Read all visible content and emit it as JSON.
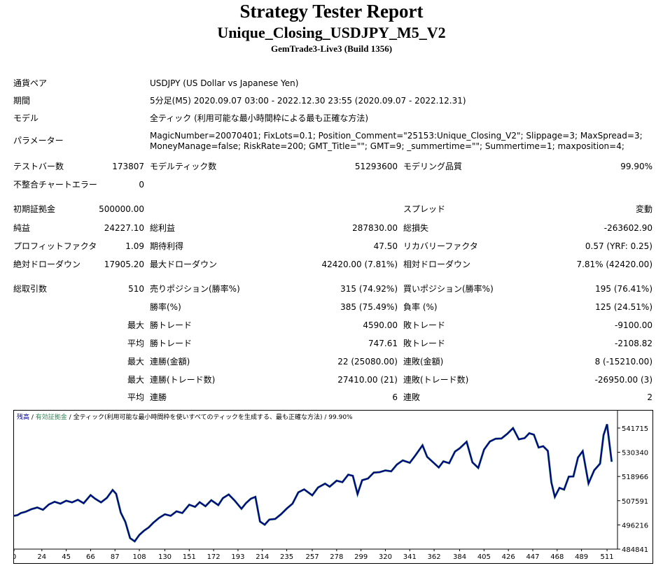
{
  "header": {
    "title": "Strategy Tester Report",
    "subtitle": "Unique_Closing_USDJPY_M5_V2",
    "build": "GemTrade3-Live3 (Build 1356)"
  },
  "info": {
    "pair_label": "通貨ペア",
    "pair_value": "USDJPY (US Dollar vs Japanese Yen)",
    "period_label": "期間",
    "period_value": "5分足(M5) 2020.09.07 03:00 - 2022.12.30 23:55 (2020.09.07 - 2022.12.31)",
    "model_label": "モデル",
    "model_value": "全ティック (利用可能な最小時間枠による最も正確な方法)",
    "params_label": "パラメーター",
    "params_line1": "MagicNumber=20070401; FixLots=0.1; Position_Comment=\"25153:Unique_Closing_V2\"; Slippage=3; MaxSpread=3;",
    "params_line2": "MoneyManage=false; RiskRate=200; GMT_Title=\"\"; GMT=9; _summertime=\"\"; Summertime=1; maxposition=4;"
  },
  "stats": {
    "bars_label": "テストバー数",
    "bars_value": "173807",
    "ticks_label": "モデルティック数",
    "ticks_value": "51293600",
    "quality_label": "モデリング品質",
    "quality_value": "99.90%",
    "mismatch_label": "不整合チャートエラー",
    "mismatch_value": "0",
    "deposit_label": "初期証拠金",
    "deposit_value": "500000.00",
    "spread_label": "スプレッド",
    "spread_value": "変動",
    "net_label": "純益",
    "net_value": "24227.10",
    "gross_profit_label": "総利益",
    "gross_profit_value": "287830.00",
    "gross_loss_label": "総損失",
    "gross_loss_value": "-263602.90",
    "pf_label": "プロフィットファクタ",
    "pf_value": "1.09",
    "expected_label": "期待利得",
    "expected_value": "47.50",
    "recovery_label": "リカバリーファクタ",
    "recovery_value": "0.57 (YRF: 0.25)",
    "abs_dd_label": "絶対ドローダウン",
    "abs_dd_value": "17905.20",
    "max_dd_label": "最大ドローダウン",
    "max_dd_value": "42420.00 (7.81%)",
    "rel_dd_label": "相対ドローダウン",
    "rel_dd_value": "7.81% (42420.00)",
    "total_trades_label": "総取引数",
    "total_trades_value": "510",
    "short_label": "売りポジション(勝率%)",
    "short_value": "315 (74.92%)",
    "long_label": "買いポジション(勝率%)",
    "long_value": "195 (76.41%)",
    "win_rate_label": "勝率(%)",
    "win_rate_value": "385 (75.49%)",
    "loss_rate_label": "負率 (%)",
    "loss_rate_value": "125 (24.51%)",
    "max_label": "最大",
    "avg_label": "平均",
    "largest_win_label": "勝トレード",
    "largest_win_value": "4590.00",
    "largest_loss_label": "敗トレード",
    "largest_loss_value": "-9100.00",
    "avg_win_label": "勝トレード",
    "avg_win_value": "747.61",
    "avg_loss_label": "敗トレード",
    "avg_loss_value": "-2108.82",
    "max_consec_win_label": "連勝(金額)",
    "max_consec_win_value": "22 (25080.00)",
    "max_consec_loss_label": "連敗(金額)",
    "max_consec_loss_value": "8 (-15210.00)",
    "max_consec_profit_label": "連勝(トレード数)",
    "max_consec_profit_value": "27410.00 (21)",
    "max_consec_lossamt_label": "連敗(トレード数)",
    "max_consec_lossamt_value": "-26950.00 (3)",
    "avg_consec_win_label": "連勝",
    "avg_consec_win_value": "6",
    "avg_consec_loss_label": "連敗",
    "avg_consec_loss_value": "2"
  },
  "chart_data": {
    "type": "line",
    "legend": {
      "balance": "残高",
      "sep1": " / ",
      "equity": "有効証拠金",
      "sep2": " / ",
      "model": "全ティック(利用可能な最小時間枠を使いすべてのティックを生成する、最も正確な方法)",
      "sep3": " / ",
      "quality": "99.90%"
    },
    "colors": {
      "balance": "#00008b",
      "equity": "#2e8b57",
      "background": "#ffffff",
      "grid": "#cccccc"
    },
    "x_ticks": [
      "0",
      "24",
      "45",
      "66",
      "87",
      "108",
      "130",
      "151",
      "172",
      "193",
      "214",
      "235",
      "257",
      "278",
      "299",
      "320",
      "341",
      "362",
      "384",
      "405",
      "426",
      "447",
      "468",
      "489",
      "511"
    ],
    "y_ticks": [
      "541715",
      "530340",
      "518966",
      "507591",
      "496216",
      "484841"
    ],
    "ylim": [
      484841,
      544000
    ],
    "xlim": [
      0,
      520
    ],
    "series": [
      {
        "name": "残高",
        "x": [
          0,
          3,
          6,
          10,
          15,
          20,
          25,
          30,
          35,
          40,
          45,
          50,
          55,
          60,
          66,
          70,
          75,
          80,
          85,
          88,
          92,
          96,
          100,
          104,
          108,
          112,
          116,
          120,
          125,
          130,
          135,
          140,
          145,
          151,
          156,
          160,
          165,
          170,
          176,
          180,
          185,
          190,
          196,
          200,
          204,
          208,
          212,
          216,
          220,
          225,
          230,
          235,
          240,
          245,
          250,
          257,
          262,
          268,
          272,
          278,
          283,
          288,
          292,
          296,
          300,
          305,
          310,
          315,
          320,
          325,
          330,
          335,
          341,
          346,
          352,
          356,
          362,
          366,
          370,
          375,
          380,
          384,
          390,
          395,
          400,
          405,
          410,
          415,
          420,
          425,
          430,
          435,
          440,
          444,
          448,
          452,
          456,
          460,
          463,
          466,
          470,
          474,
          478,
          482,
          486,
          490,
          495,
          500,
          505,
          508,
          511,
          515
        ],
        "y": [
          500500,
          500800,
          501800,
          502400,
          503600,
          504400,
          503300,
          505800,
          507100,
          506200,
          507600,
          506800,
          508000,
          506400,
          510200,
          508500,
          506800,
          508900,
          512600,
          510800,
          502000,
          497600,
          490000,
          488500,
          491500,
          493500,
          495000,
          497200,
          499500,
          501200,
          500500,
          502600,
          501800,
          505700,
          504700,
          506900,
          505000,
          507800,
          505500,
          508800,
          510500,
          507700,
          503800,
          506500,
          508500,
          509400,
          497800,
          496300,
          498700,
          499000,
          501200,
          503900,
          506200,
          511500,
          512900,
          510100,
          513800,
          515600,
          514200,
          517000,
          516300,
          519800,
          519300,
          510700,
          517200,
          518000,
          520800,
          521000,
          521800,
          521400,
          524600,
          526500,
          525400,
          529000,
          533600,
          528200,
          525200,
          523200,
          526100,
          525200,
          530700,
          532200,
          535300,
          525600,
          523000,
          531600,
          535400,
          536700,
          536800,
          539000,
          541700,
          536400,
          537000,
          539300,
          538600,
          532600,
          533200,
          531000,
          516300,
          509400,
          513600,
          512800,
          518900,
          519000,
          527900,
          530900,
          515700,
          521900,
          525000,
          538400,
          543500,
          525900
        ]
      }
    ]
  }
}
